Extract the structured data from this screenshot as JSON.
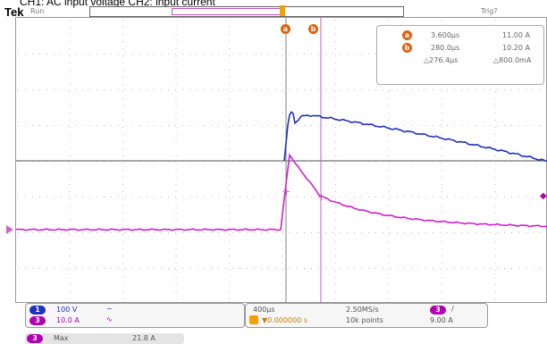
{
  "caption": "CH1: AC input voltage      CH2: input current",
  "brand": "Tek",
  "run_status": "Run",
  "trigger_status": "Trig?",
  "colors": {
    "ch1_voltage": "#2030c0",
    "ch2_current": "#d020d0",
    "cursor": "#e06010",
    "trigger": "#f0a000"
  },
  "cursors": {
    "a": {
      "badge": "a",
      "time": "3.600µs",
      "value": "11.00 A"
    },
    "b": {
      "badge": "b",
      "time": "280.0µs",
      "value": "10.20 A"
    },
    "delta_time": "△276.4µs",
    "delta_value": "△800.0mA"
  },
  "channels": {
    "ch1": {
      "badge": "1",
      "scale": "100 V",
      "coupling_icon": "~"
    },
    "ch3": {
      "badge": "3",
      "scale": "10.0 A",
      "coupling_icon": "∿"
    }
  },
  "timebase": {
    "time_per_div": "400µs",
    "position": "▼0.000000 s",
    "sample_rate": "2.50MS/s",
    "record_length": "10k points"
  },
  "trigger": {
    "badge": "3",
    "slope_icon": "/",
    "level": "9.00 A"
  },
  "measurement": {
    "badge": "3",
    "type": "Max",
    "value": "21.8 A"
  }
}
